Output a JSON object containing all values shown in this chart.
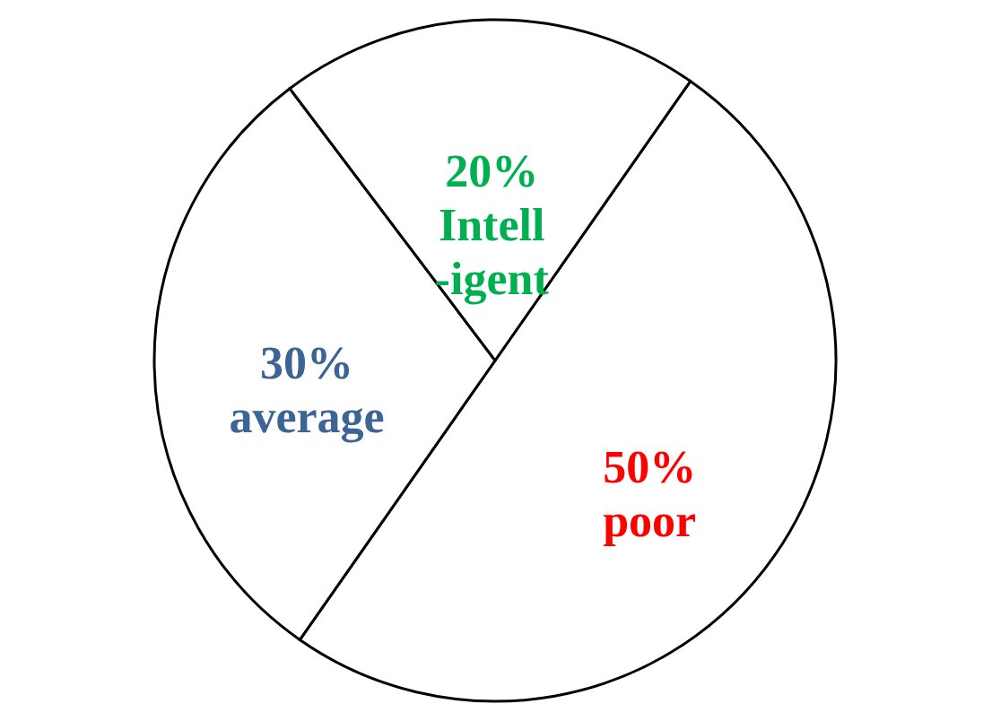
{
  "chart_data": {
    "type": "pie",
    "categories": [
      "poor",
      "average",
      "Intell\n-igent"
    ],
    "values": [
      50,
      30,
      20
    ],
    "value_labels": [
      "50%",
      "30%",
      "20%"
    ],
    "colors": [
      "#ffffff",
      "#ffffff",
      "#ffffff"
    ]
  }
}
